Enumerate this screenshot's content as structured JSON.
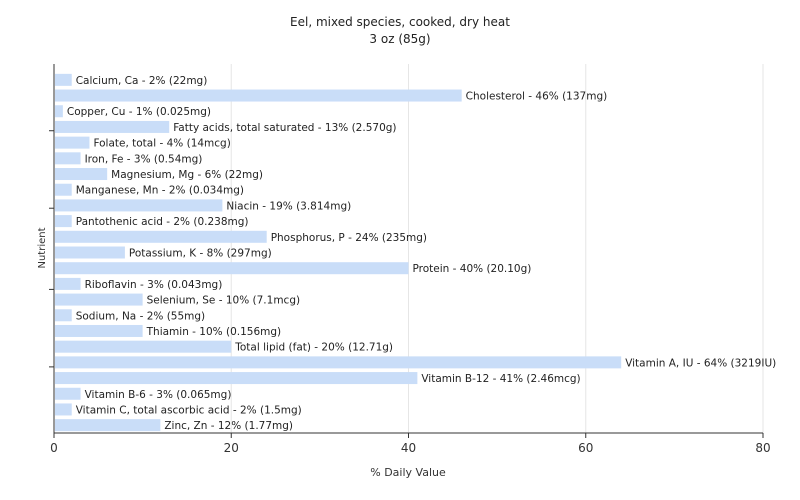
{
  "chart_data": {
    "type": "bar",
    "orientation": "horizontal",
    "title": "Eel, mixed species, cooked, dry heat",
    "subtitle": "3 oz (85g)",
    "xlabel": "% Daily Value",
    "ylabel": "Nutrient",
    "xlim": [
      0,
      80
    ],
    "xticks": [
      0,
      20,
      40,
      60,
      80
    ],
    "grid": true,
    "bar_color": "#c9ddf8",
    "categories": [
      "Calcium, Ca - 2% (22mg)",
      "Cholesterol - 46% (137mg)",
      "Copper, Cu - 1% (0.025mg)",
      "Fatty acids, total saturated - 13% (2.570g)",
      "Folate, total - 4% (14mcg)",
      "Iron, Fe - 3% (0.54mg)",
      "Magnesium, Mg - 6% (22mg)",
      "Manganese, Mn - 2% (0.034mg)",
      "Niacin - 19% (3.814mg)",
      "Pantothenic acid - 2% (0.238mg)",
      "Phosphorus, P - 24% (235mg)",
      "Potassium, K - 8% (297mg)",
      "Protein - 40% (20.10g)",
      "Riboflavin - 3% (0.043mg)",
      "Selenium, Se - 10% (7.1mcg)",
      "Sodium, Na - 2% (55mg)",
      "Thiamin - 10% (0.156mg)",
      "Total lipid (fat) - 20% (12.71g)",
      "Vitamin A, IU - 64% (3219IU)",
      "Vitamin B-12 - 41% (2.46mcg)",
      "Vitamin B-6 - 3% (0.065mg)",
      "Vitamin C, total ascorbic acid - 2% (1.5mg)",
      "Zinc, Zn - 12% (1.77mg)"
    ],
    "values": [
      2,
      46,
      1,
      13,
      4,
      3,
      6,
      2,
      19,
      2,
      24,
      8,
      40,
      3,
      10,
      2,
      10,
      20,
      64,
      41,
      3,
      2,
      12
    ]
  }
}
